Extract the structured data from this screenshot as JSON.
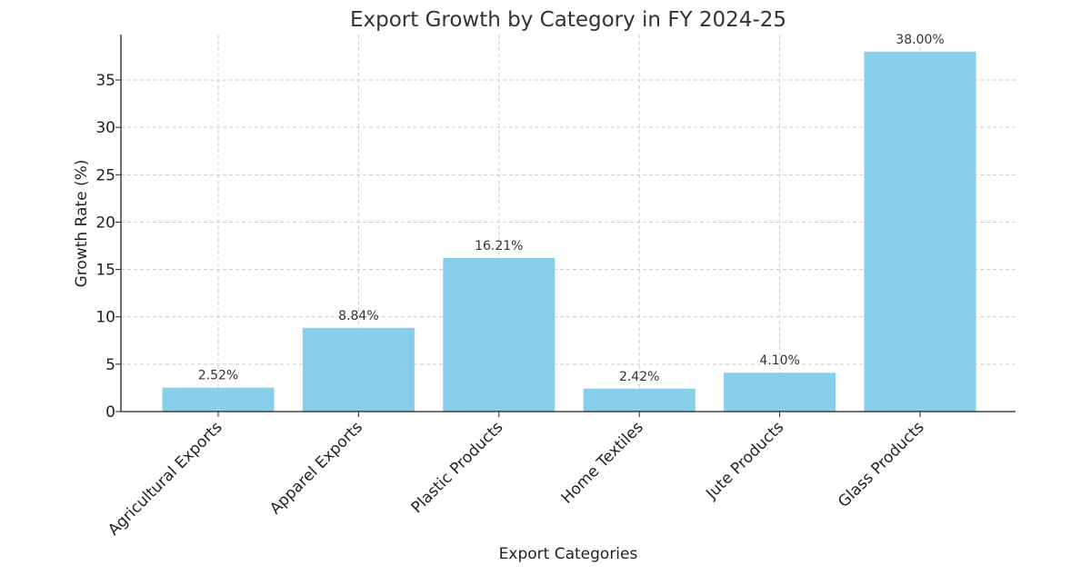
{
  "chart_data": {
    "type": "bar",
    "title": "Export Growth by Category in FY 2024-25",
    "xlabel": "Export Categories",
    "ylabel": "Growth Rate (%)",
    "categories": [
      "Agricultural Exports",
      "Apparel Exports",
      "Plastic Products",
      "Home Textiles",
      "Jute Products",
      "Glass Products"
    ],
    "values": [
      2.52,
      8.84,
      16.21,
      2.42,
      4.1,
      38.0
    ],
    "data_labels": [
      "2.52%",
      "8.84%",
      "16.21%",
      "2.42%",
      "4.10%",
      "38.00%"
    ],
    "ylim": [
      0,
      39.8
    ],
    "yticks": [
      0,
      5,
      10,
      15,
      20,
      25,
      30,
      35
    ],
    "grid": true,
    "bar_color": "#87ceeb",
    "legend": "none"
  }
}
